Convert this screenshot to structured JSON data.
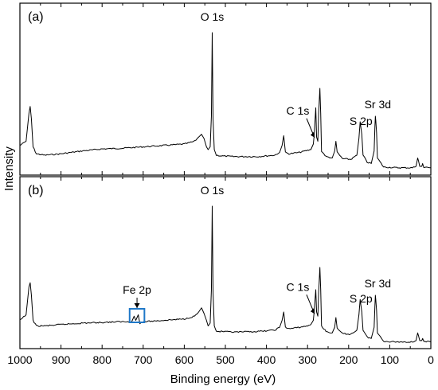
{
  "chart_data": {
    "type": "line",
    "xlabel": "Binding energy (eV)",
    "ylabel": "Intensity",
    "x_ticks": [
      1000,
      900,
      800,
      700,
      600,
      500,
      400,
      300,
      200,
      100,
      0
    ],
    "xlim": [
      1000,
      0
    ],
    "x_reversed": true,
    "grid": false,
    "panels": [
      {
        "label": "(a)",
        "spectrum": [
          [
            1000,
            0.19
          ],
          [
            985,
            0.22
          ],
          [
            978,
            0.42
          ],
          [
            975,
            0.47
          ],
          [
            972,
            0.38
          ],
          [
            968,
            0.18
          ],
          [
            960,
            0.13
          ],
          [
            940,
            0.12
          ],
          [
            900,
            0.13
          ],
          [
            850,
            0.15
          ],
          [
            800,
            0.165
          ],
          [
            750,
            0.17
          ],
          [
            700,
            0.18
          ],
          [
            650,
            0.19
          ],
          [
            600,
            0.2
          ],
          [
            575,
            0.22
          ],
          [
            565,
            0.25
          ],
          [
            558,
            0.27
          ],
          [
            552,
            0.24
          ],
          [
            546,
            0.18
          ],
          [
            542,
            0.16
          ],
          [
            537,
            0.18
          ],
          [
            534,
            0.4
          ],
          [
            532,
            1.0
          ],
          [
            530,
            0.38
          ],
          [
            527,
            0.16
          ],
          [
            522,
            0.12
          ],
          [
            510,
            0.115
          ],
          [
            480,
            0.11
          ],
          [
            420,
            0.11
          ],
          [
            380,
            0.12
          ],
          [
            368,
            0.14
          ],
          [
            362,
            0.19
          ],
          [
            358,
            0.26
          ],
          [
            354,
            0.14
          ],
          [
            345,
            0.13
          ],
          [
            320,
            0.14
          ],
          [
            300,
            0.155
          ],
          [
            292,
            0.16
          ],
          [
            286,
            0.2
          ],
          [
            284,
            0.26
          ],
          [
            282,
            0.36
          ],
          [
            280,
            0.46
          ],
          [
            278,
            0.25
          ],
          [
            275,
            0.22
          ],
          [
            273,
            0.42
          ],
          [
            270,
            0.6
          ],
          [
            268,
            0.42
          ],
          [
            266,
            0.15
          ],
          [
            255,
            0.11
          ],
          [
            240,
            0.1
          ],
          [
            234,
            0.15
          ],
          [
            231,
            0.22
          ],
          [
            228,
            0.14
          ],
          [
            215,
            0.095
          ],
          [
            195,
            0.09
          ],
          [
            180,
            0.12
          ],
          [
            175,
            0.24
          ],
          [
            172,
            0.36
          ],
          [
            168,
            0.27
          ],
          [
            165,
            0.12
          ],
          [
            155,
            0.07
          ],
          [
            145,
            0.06
          ],
          [
            138,
            0.15
          ],
          [
            136,
            0.33
          ],
          [
            135,
            0.4
          ],
          [
            134,
            0.37
          ],
          [
            132,
            0.28
          ],
          [
            130,
            0.1
          ],
          [
            115,
            0.035
          ],
          [
            80,
            0.03
          ],
          [
            45,
            0.03
          ],
          [
            36,
            0.04
          ],
          [
            32,
            0.1
          ],
          [
            30,
            0.08
          ],
          [
            27,
            0.04
          ],
          [
            22,
            0.04
          ],
          [
            20,
            0.06
          ],
          [
            17,
            0.035
          ],
          [
            0,
            0.03
          ]
        ],
        "annotations": [
          {
            "text": "O 1s",
            "x": 532
          },
          {
            "text": "C 1s",
            "x": 285,
            "arrow": true
          },
          {
            "text": "S 2p",
            "x": 168
          },
          {
            "text": "Sr 3d",
            "x": 135
          }
        ]
      },
      {
        "label": "(b)",
        "spectrum": [
          [
            1000,
            0.18
          ],
          [
            985,
            0.22
          ],
          [
            978,
            0.42
          ],
          [
            975,
            0.45
          ],
          [
            972,
            0.36
          ],
          [
            968,
            0.18
          ],
          [
            960,
            0.14
          ],
          [
            940,
            0.14
          ],
          [
            900,
            0.15
          ],
          [
            850,
            0.16
          ],
          [
            800,
            0.165
          ],
          [
            760,
            0.17
          ],
          [
            740,
            0.17
          ],
          [
            728,
            0.17
          ],
          [
            722,
            0.21
          ],
          [
            718,
            0.18
          ],
          [
            712,
            0.22
          ],
          [
            708,
            0.16
          ],
          [
            700,
            0.17
          ],
          [
            650,
            0.18
          ],
          [
            600,
            0.19
          ],
          [
            575,
            0.21
          ],
          [
            565,
            0.24
          ],
          [
            558,
            0.27
          ],
          [
            552,
            0.23
          ],
          [
            546,
            0.18
          ],
          [
            542,
            0.14
          ],
          [
            537,
            0.16
          ],
          [
            534,
            0.4
          ],
          [
            532,
            1.0
          ],
          [
            530,
            0.38
          ],
          [
            527,
            0.14
          ],
          [
            522,
            0.1
          ],
          [
            510,
            0.1
          ],
          [
            480,
            0.095
          ],
          [
            420,
            0.1
          ],
          [
            380,
            0.11
          ],
          [
            368,
            0.13
          ],
          [
            362,
            0.18
          ],
          [
            358,
            0.24
          ],
          [
            354,
            0.13
          ],
          [
            345,
            0.12
          ],
          [
            320,
            0.13
          ],
          [
            300,
            0.14
          ],
          [
            292,
            0.15
          ],
          [
            286,
            0.18
          ],
          [
            284,
            0.24
          ],
          [
            282,
            0.32
          ],
          [
            280,
            0.4
          ],
          [
            278,
            0.24
          ],
          [
            275,
            0.21
          ],
          [
            273,
            0.38
          ],
          [
            270,
            0.56
          ],
          [
            268,
            0.4
          ],
          [
            266,
            0.14
          ],
          [
            255,
            0.1
          ],
          [
            240,
            0.09
          ],
          [
            234,
            0.13
          ],
          [
            231,
            0.2
          ],
          [
            228,
            0.12
          ],
          [
            215,
            0.085
          ],
          [
            195,
            0.08
          ],
          [
            180,
            0.11
          ],
          [
            175,
            0.22
          ],
          [
            172,
            0.33
          ],
          [
            168,
            0.24
          ],
          [
            165,
            0.11
          ],
          [
            155,
            0.06
          ],
          [
            145,
            0.05
          ],
          [
            138,
            0.13
          ],
          [
            136,
            0.29
          ],
          [
            135,
            0.36
          ],
          [
            134,
            0.33
          ],
          [
            132,
            0.25
          ],
          [
            130,
            0.09
          ],
          [
            115,
            0.03
          ],
          [
            80,
            0.025
          ],
          [
            45,
            0.025
          ],
          [
            36,
            0.035
          ],
          [
            32,
            0.09
          ],
          [
            30,
            0.07
          ],
          [
            27,
            0.035
          ],
          [
            22,
            0.035
          ],
          [
            20,
            0.05
          ],
          [
            17,
            0.03
          ],
          [
            0,
            0.025
          ]
        ],
        "annotations": [
          {
            "text": "Fe 2p",
            "x": 715,
            "arrow": true,
            "highlight": [
              733,
              697
            ],
            "highlight_color": "#1f78c8"
          },
          {
            "text": "O 1s",
            "x": 532
          },
          {
            "text": "C 1s",
            "x": 285,
            "arrow": true
          },
          {
            "text": "S 2p",
            "x": 168
          },
          {
            "text": "Sr 3d",
            "x": 135
          }
        ]
      }
    ]
  }
}
